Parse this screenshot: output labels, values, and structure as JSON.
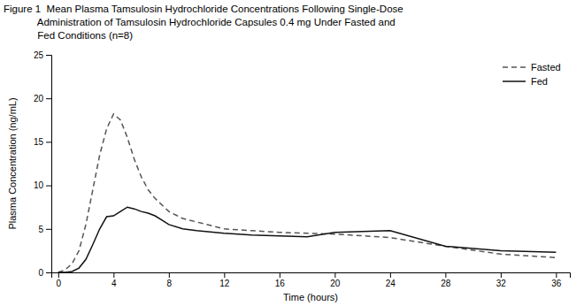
{
  "chart_data": {
    "type": "line",
    "title": "Figure 1  Mean Plasma Tamsulosin Hydrochloride Concentrations Following Single-Dose\n            Administration of Tamsulosin Hydrochloride Capsules 0.4 mg Under Fasted and\n            Fed Conditions (n=8)",
    "x_label": "Time (hours)",
    "y_label": "Plasma Concentration (ng/mL)",
    "xlim": [
      -0.5,
      37
    ],
    "ylim": [
      0,
      25
    ],
    "xticks": [
      0,
      4,
      8,
      12,
      16,
      20,
      24,
      28,
      32,
      36
    ],
    "yticks": [
      0,
      5,
      10,
      15,
      20,
      25
    ],
    "grid": false,
    "legend": "upper right",
    "series": [
      {
        "name": "Fasted",
        "color": "#555555",
        "line_style": "dashed",
        "x": [
          0,
          0.5,
          1.0,
          1.5,
          2.0,
          2.5,
          3.0,
          3.5,
          4.0,
          4.5,
          5.0,
          5.5,
          6.0,
          6.5,
          7.0,
          8.0,
          9.0,
          10.0,
          12.0,
          14.0,
          16.0,
          18.0,
          20.0,
          24.0,
          28.0,
          32.0,
          36.0
        ],
        "values": [
          0.0,
          0.3,
          1.0,
          2.5,
          5.5,
          9.5,
          13.5,
          16.5,
          18.2,
          17.5,
          15.5,
          13.0,
          11.0,
          9.5,
          8.5,
          7.0,
          6.2,
          5.8,
          5.0,
          4.8,
          4.6,
          4.5,
          4.4,
          4.0,
          3.0,
          2.1,
          1.7
        ]
      },
      {
        "name": "Fed",
        "color": "#111111",
        "line_style": "solid",
        "x": [
          0,
          0.5,
          1.0,
          1.5,
          2.0,
          2.5,
          3.0,
          3.5,
          4.0,
          4.5,
          5.0,
          5.5,
          6.0,
          6.5,
          7.0,
          7.5,
          8.0,
          9.0,
          10.0,
          12.0,
          14.0,
          16.0,
          18.0,
          20.0,
          24.0,
          28.0,
          32.0,
          36.0
        ],
        "values": [
          0.0,
          0.0,
          0.1,
          0.5,
          1.5,
          3.2,
          5.0,
          6.4,
          6.5,
          7.0,
          7.5,
          7.3,
          7.0,
          6.8,
          6.5,
          6.0,
          5.5,
          5.0,
          4.8,
          4.5,
          4.3,
          4.2,
          4.1,
          4.6,
          4.8,
          3.0,
          2.5,
          2.3
        ]
      }
    ]
  }
}
